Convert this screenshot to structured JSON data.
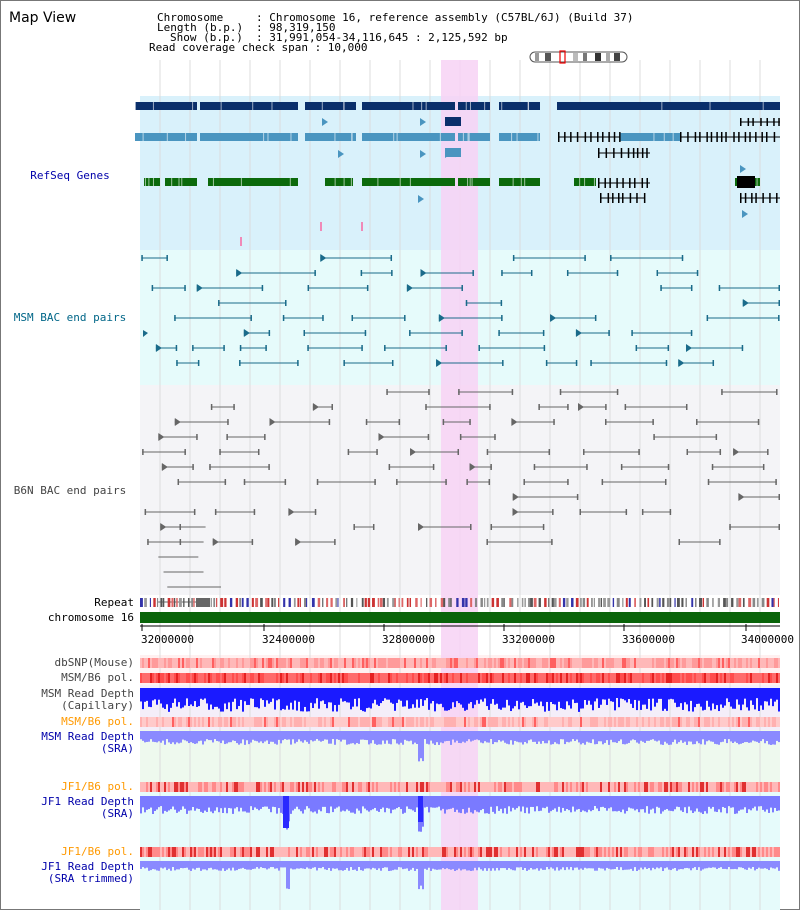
{
  "map_title": "Map View",
  "info": {
    "chromosome_key": "Chromosome",
    "chromosome_value": ": Chromosome 16, reference assembly (C57BL/6J) (Build 37)",
    "length_key": "Length (b.p.)",
    "length_value": ": 98,319,150",
    "show_key": "Show (b.p.)",
    "show_value": ": 31,991,054-34,116,645 : 2,125,592 bp",
    "read_coverage": "Read coverage check span : 10,000"
  },
  "tracks": {
    "refseq": "RefSeq Genes",
    "msm_bac": "MSM BAC end pairs",
    "b6n_bac": "B6N BAC end pairs",
    "repeat": "Repeat",
    "chromosome": "chromosome 16",
    "dbsnp": "dbSNP(Mouse)",
    "msm_b6_pol_1": "MSM/B6 pol.",
    "msm_read_depth_cap_1": "MSM Read Depth",
    "msm_read_depth_cap_2": "(Capillary)",
    "msm_b6_pol_2": "MSM/B6 pol.",
    "msm_read_depth_sra_1": "MSM Read Depth",
    "msm_read_depth_sra_2": "(SRA)",
    "jf1_b6_pol_1": "JF1/B6 pol.",
    "jf1_read_depth_1": "JF1 Read Depth",
    "jf1_read_depth_2": "(SRA)",
    "jf1_b6_pol_2": "JF1/B6 pol.",
    "jf1_trim_1": "JF1 Read Depth",
    "jf1_trim_2": "(SRA trimmed)"
  },
  "axis_ticks": [
    "32000000",
    "32400000",
    "32800000",
    "33200000",
    "33600000",
    "34000000"
  ],
  "colors": {
    "refseq_bg": "#d9f1fb",
    "msm_bg": "#e6fbfb",
    "b6n_bg": "#f4f4f7",
    "highlight": "#f7d2f4",
    "gene_dark": "#0a2f6b",
    "gene_mid": "#4a95c0",
    "gene_green": "#0c6a0c",
    "msm_line": "#1a6b8a",
    "b6n_line": "#666666",
    "chromosome_bar": "#0a640a"
  }
}
